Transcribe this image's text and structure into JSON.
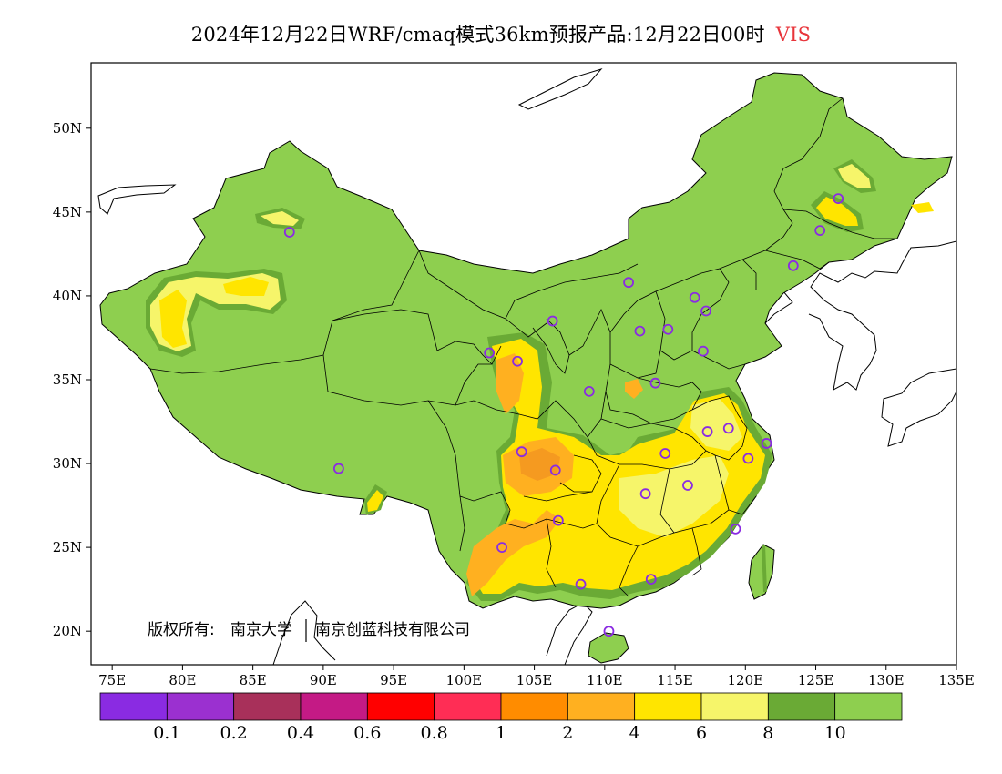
{
  "title": {
    "main": "2024年12月22日WRF/cmaq模式36km预报产品:12月22日00时",
    "variable": "VIS"
  },
  "axes": {
    "lon_ticks": [
      "75E",
      "80E",
      "85E",
      "90E",
      "95E",
      "100E",
      "105E",
      "110E",
      "115E",
      "120E",
      "125E",
      "130E",
      "135E"
    ],
    "lat_ticks": [
      "50N",
      "45N",
      "40N",
      "35N",
      "30N",
      "25N",
      "20N"
    ]
  },
  "copyright": {
    "owner_label": "版权所有:",
    "org1": "南京大学",
    "org2": "南京创蓝科技有限公司"
  },
  "colorbar": {
    "colors": [
      "#8a2be2",
      "#9b30d0",
      "#a8305a",
      "#c41a85",
      "#ff0000",
      "#ff2d55",
      "#ff8c00",
      "#ffb020",
      "#ffe500",
      "#f6f56a",
      "#6aaa35",
      "#8ecf4f"
    ],
    "labels": [
      "0.1",
      "0.2",
      "0.4",
      "0.6",
      "0.8",
      "1",
      "2",
      "4",
      "6",
      "8",
      "10"
    ]
  },
  "map_colors": {
    "land_good": "#8ecf4f",
    "land_dark": "#6aaa35",
    "yellow": "#ffe500",
    "light_yellow": "#f6f56a",
    "gold": "#ffb020",
    "orange": "#f59a20",
    "marker": "#8a2be2"
  },
  "stations": [
    {
      "lon": 87.6,
      "lat": 43.8
    },
    {
      "lon": 91.1,
      "lat": 29.7
    },
    {
      "lon": 101.8,
      "lat": 36.6
    },
    {
      "lon": 103.8,
      "lat": 36.1
    },
    {
      "lon": 106.3,
      "lat": 38.5
    },
    {
      "lon": 104.1,
      "lat": 30.7
    },
    {
      "lon": 106.5,
      "lat": 29.6
    },
    {
      "lon": 106.7,
      "lat": 26.6
    },
    {
      "lon": 102.7,
      "lat": 25.0
    },
    {
      "lon": 108.9,
      "lat": 34.3
    },
    {
      "lon": 111.7,
      "lat": 40.8
    },
    {
      "lon": 112.5,
      "lat": 37.9
    },
    {
      "lon": 114.5,
      "lat": 38.0
    },
    {
      "lon": 116.4,
      "lat": 39.9
    },
    {
      "lon": 117.2,
      "lat": 39.1
    },
    {
      "lon": 117.0,
      "lat": 36.7
    },
    {
      "lon": 113.6,
      "lat": 34.8
    },
    {
      "lon": 114.3,
      "lat": 30.6
    },
    {
      "lon": 112.9,
      "lat": 28.2
    },
    {
      "lon": 115.9,
      "lat": 28.7
    },
    {
      "lon": 117.3,
      "lat": 31.9
    },
    {
      "lon": 118.8,
      "lat": 32.1
    },
    {
      "lon": 120.2,
      "lat": 30.3
    },
    {
      "lon": 121.5,
      "lat": 31.2
    },
    {
      "lon": 119.3,
      "lat": 26.1
    },
    {
      "lon": 113.3,
      "lat": 23.1
    },
    {
      "lon": 108.3,
      "lat": 22.8
    },
    {
      "lon": 110.3,
      "lat": 20.0
    },
    {
      "lon": 123.4,
      "lat": 41.8
    },
    {
      "lon": 125.3,
      "lat": 43.9
    },
    {
      "lon": 126.6,
      "lat": 45.8
    }
  ]
}
